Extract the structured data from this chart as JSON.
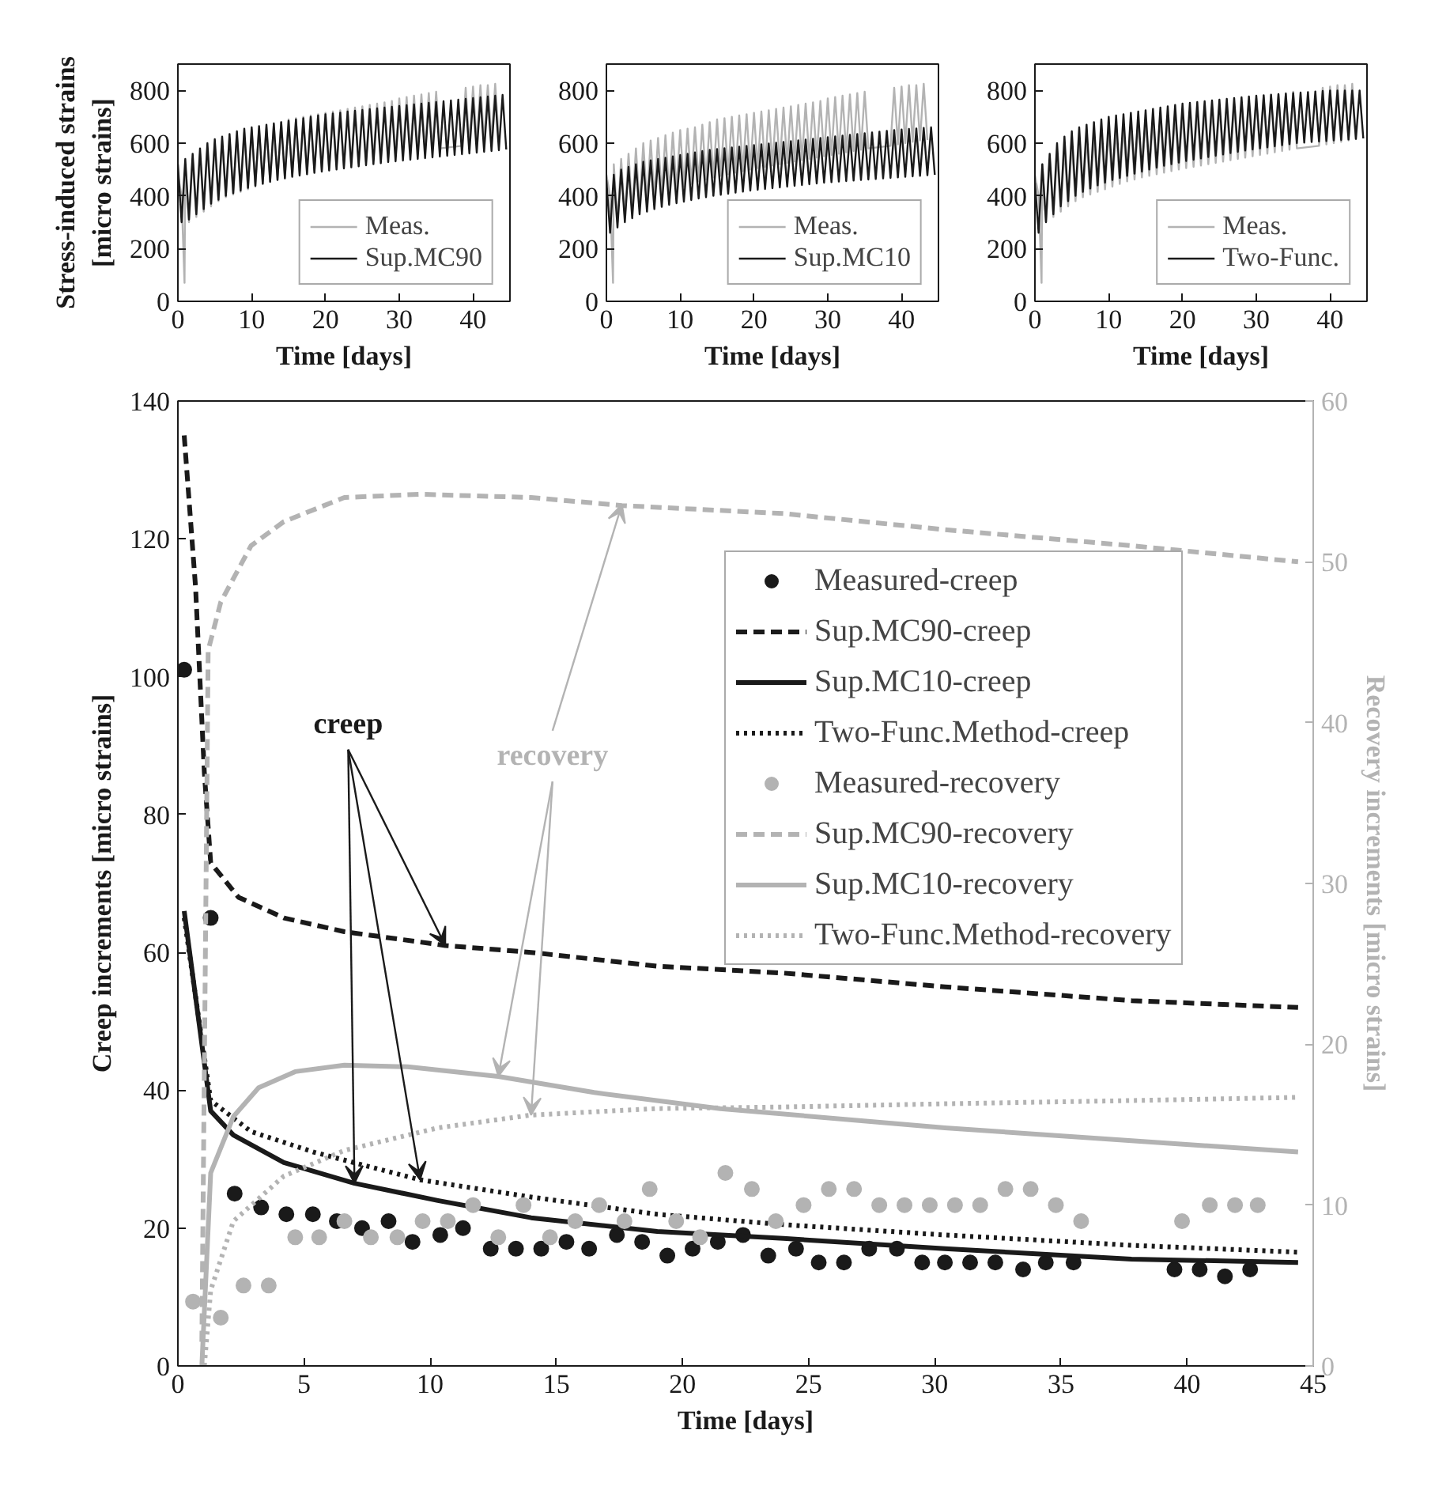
{
  "chart_data": [
    {
      "type": "line",
      "ylabel": "Stress-induced strains\n[micro strains]",
      "xlabel": "Time [days]",
      "xlim": [
        0,
        45
      ],
      "xticks": [
        0,
        10,
        20,
        30,
        40
      ],
      "ylim": [
        0,
        900
      ],
      "yticks": [
        0,
        200,
        400,
        600,
        800
      ],
      "legend": "bottom right",
      "x": [
        0,
        0.5,
        1,
        1.5,
        2,
        2.5,
        3,
        3.5,
        4,
        4.5,
        5,
        5.5,
        6,
        6.5,
        7,
        7.5,
        8,
        8.5,
        9,
        9.5,
        10,
        10.5,
        11,
        11.5,
        12,
        12.5,
        13,
        13.5,
        14,
        14.5,
        15,
        15.5,
        16,
        16.5,
        17,
        17.5,
        18,
        18.5,
        19,
        19.5,
        20,
        20.5,
        21,
        21.5,
        22,
        22.5,
        23,
        23.5,
        24,
        24.5,
        25,
        25.5,
        26,
        26.5,
        27,
        27.5,
        28,
        28.5,
        29,
        29.5,
        30,
        30.5,
        31,
        31.5,
        32,
        32.5,
        33,
        33.5,
        34,
        34.5,
        35,
        35.5,
        36,
        36.5,
        37,
        37.5,
        38,
        38.5,
        39,
        39.5,
        40,
        40.5,
        41,
        41.5,
        42,
        42.5,
        43,
        43.5,
        44,
        44.5
      ],
      "series": [
        {
          "name": "Meas.",
          "color": "#b3b3b3",
          "x": [
            0,
            0.5,
            0.9,
            1,
            1.5,
            2,
            2.5,
            3,
            3.5,
            4,
            4.5,
            5,
            5.5,
            6,
            6.5,
            7,
            7.5,
            8,
            8.5,
            9,
            9.5,
            10,
            10.5,
            11,
            11.5,
            12,
            12.5,
            13,
            13.5,
            14,
            14.5,
            15,
            15.5,
            16,
            16.5,
            17,
            17.5,
            18,
            18.5,
            19,
            19.5,
            20,
            20.5,
            21,
            21.5,
            22,
            22.5,
            23,
            23.5,
            24,
            24.5,
            25,
            25.5,
            26,
            26.5,
            27,
            27.5,
            28,
            28.5,
            29,
            29.5,
            30,
            30.5,
            31,
            31.5,
            32,
            32.5,
            33,
            33.5,
            34,
            34.5,
            35,
            35.5,
            38.5,
            39,
            39.5,
            40,
            40.5,
            41,
            41.5,
            42,
            42.5,
            43,
            43.5
          ],
          "values": [
            480,
            400,
            70,
            520,
            300,
            540,
            320,
            560,
            340,
            580,
            360,
            600,
            380,
            610,
            395,
            620,
            405,
            630,
            415,
            640,
            425,
            650,
            435,
            655,
            445,
            660,
            455,
            670,
            462,
            680,
            470,
            690,
            476,
            695,
            482,
            700,
            488,
            705,
            494,
            710,
            500,
            715,
            505,
            720,
            510,
            725,
            515,
            730,
            520,
            735,
            525,
            740,
            530,
            745,
            535,
            750,
            540,
            755,
            545,
            760,
            550,
            770,
            555,
            775,
            560,
            780,
            565,
            785,
            570,
            790,
            575,
            795,
            580,
            590,
            810,
            595,
            815,
            600,
            820,
            605,
            820,
            610,
            825,
            612
          ]
        },
        {
          "name": "Sup.MC90",
          "color": "#1a1a1a",
          "values": [
            520,
            300,
            540,
            310,
            560,
            330,
            580,
            350,
            600,
            370,
            615,
            385,
            625,
            400,
            635,
            410,
            645,
            420,
            655,
            430,
            660,
            438,
            665,
            446,
            670,
            453,
            675,
            460,
            680,
            466,
            685,
            472,
            690,
            477,
            695,
            482,
            700,
            487,
            705,
            492,
            710,
            496,
            713,
            500,
            716,
            504,
            720,
            508,
            723,
            512,
            726,
            516,
            729,
            520,
            732,
            524,
            735,
            528,
            738,
            531,
            741,
            534,
            744,
            537,
            747,
            540,
            750,
            543,
            753,
            546,
            756,
            549,
            759,
            552,
            762,
            555,
            765,
            558,
            768,
            561,
            771,
            564,
            774,
            567,
            777,
            570,
            780,
            573,
            783,
            576
          ]
        }
      ]
    },
    {
      "type": "line",
      "xlabel": "Time [days]",
      "xlim": [
        0,
        45
      ],
      "xticks": [
        0,
        10,
        20,
        30,
        40
      ],
      "ylim": [
        0,
        900
      ],
      "yticks": [
        0,
        200,
        400,
        600,
        800
      ],
      "legend": "bottom right",
      "x": [
        0,
        0.5,
        1,
        1.5,
        2,
        2.5,
        3,
        3.5,
        4,
        4.5,
        5,
        5.5,
        6,
        6.5,
        7,
        7.5,
        8,
        8.5,
        9,
        9.5,
        10,
        10.5,
        11,
        11.5,
        12,
        12.5,
        13,
        13.5,
        14,
        14.5,
        15,
        15.5,
        16,
        16.5,
        17,
        17.5,
        18,
        18.5,
        19,
        19.5,
        20,
        20.5,
        21,
        21.5,
        22,
        22.5,
        23,
        23.5,
        24,
        24.5,
        25,
        25.5,
        26,
        26.5,
        27,
        27.5,
        28,
        28.5,
        29,
        29.5,
        30,
        30.5,
        31,
        31.5,
        32,
        32.5,
        33,
        33.5,
        34,
        34.5,
        35,
        35.5,
        36,
        36.5,
        37,
        37.5,
        38,
        38.5,
        39,
        39.5,
        40,
        40.5,
        41,
        41.5,
        42,
        42.5,
        43,
        43.5,
        44,
        44.5
      ],
      "series": [
        {
          "name": "Meas.",
          "color": "#b3b3b3",
          "x": [
            0,
            0.5,
            0.9,
            1,
            1.5,
            2,
            2.5,
            3,
            3.5,
            4,
            4.5,
            5,
            5.5,
            6,
            6.5,
            7,
            7.5,
            8,
            8.5,
            9,
            9.5,
            10,
            10.5,
            11,
            11.5,
            12,
            12.5,
            13,
            13.5,
            14,
            14.5,
            15,
            15.5,
            16,
            16.5,
            17,
            17.5,
            18,
            18.5,
            19,
            19.5,
            20,
            20.5,
            21,
            21.5,
            22,
            22.5,
            23,
            23.5,
            24,
            24.5,
            25,
            25.5,
            26,
            26.5,
            27,
            27.5,
            28,
            28.5,
            29,
            29.5,
            30,
            30.5,
            31,
            31.5,
            32,
            32.5,
            33,
            33.5,
            34,
            34.5,
            35,
            35.5,
            38.5,
            39,
            39.5,
            40,
            40.5,
            41,
            41.5,
            42,
            42.5,
            43,
            43.5
          ],
          "values": [
            480,
            400,
            70,
            520,
            300,
            540,
            320,
            560,
            340,
            580,
            360,
            600,
            380,
            610,
            395,
            620,
            405,
            630,
            415,
            640,
            425,
            650,
            435,
            655,
            445,
            660,
            455,
            670,
            462,
            680,
            470,
            690,
            476,
            695,
            482,
            700,
            488,
            705,
            494,
            710,
            500,
            715,
            505,
            720,
            510,
            725,
            515,
            730,
            520,
            735,
            525,
            740,
            530,
            745,
            535,
            750,
            540,
            755,
            545,
            760,
            550,
            770,
            555,
            775,
            560,
            780,
            565,
            785,
            570,
            790,
            575,
            795,
            580,
            590,
            810,
            595,
            815,
            600,
            820,
            605,
            820,
            610,
            825,
            612
          ]
        },
        {
          "name": "Sup.MC10",
          "color": "#1a1a1a",
          "values": [
            460,
            260,
            480,
            280,
            500,
            300,
            510,
            315,
            520,
            330,
            530,
            340,
            535,
            350,
            540,
            358,
            545,
            366,
            550,
            372,
            555,
            378,
            560,
            384,
            565,
            390,
            570,
            395,
            575,
            400,
            578,
            404,
            581,
            408,
            584,
            412,
            587,
            416,
            590,
            420,
            593,
            423,
            596,
            426,
            599,
            429,
            602,
            432,
            605,
            435,
            608,
            438,
            611,
            441,
            614,
            444,
            617,
            447,
            620,
            450,
            623,
            452,
            626,
            454,
            629,
            456,
            632,
            458,
            635,
            460,
            638,
            462,
            641,
            464,
            644,
            466,
            647,
            468,
            650,
            470,
            652,
            472,
            654,
            474,
            656,
            476,
            658,
            478,
            660,
            480
          ]
        }
      ]
    },
    {
      "type": "line",
      "xlabel": "Time [days]",
      "xlim": [
        0,
        45
      ],
      "xticks": [
        0,
        10,
        20,
        30,
        40
      ],
      "ylim": [
        0,
        900
      ],
      "yticks": [
        0,
        200,
        400,
        600,
        800
      ],
      "legend": "bottom right",
      "x": [
        0,
        0.5,
        1,
        1.5,
        2,
        2.5,
        3,
        3.5,
        4,
        4.5,
        5,
        5.5,
        6,
        6.5,
        7,
        7.5,
        8,
        8.5,
        9,
        9.5,
        10,
        10.5,
        11,
        11.5,
        12,
        12.5,
        13,
        13.5,
        14,
        14.5,
        15,
        15.5,
        16,
        16.5,
        17,
        17.5,
        18,
        18.5,
        19,
        19.5,
        20,
        20.5,
        21,
        21.5,
        22,
        22.5,
        23,
        23.5,
        24,
        24.5,
        25,
        25.5,
        26,
        26.5,
        27,
        27.5,
        28,
        28.5,
        29,
        29.5,
        30,
        30.5,
        31,
        31.5,
        32,
        32.5,
        33,
        33.5,
        34,
        34.5,
        35,
        35.5,
        36,
        36.5,
        37,
        37.5,
        38,
        38.5,
        39,
        39.5,
        40,
        40.5,
        41,
        41.5,
        42,
        42.5,
        43,
        43.5,
        44,
        44.5
      ],
      "series": [
        {
          "name": "Meas.",
          "color": "#b3b3b3",
          "x": [
            0,
            0.5,
            0.9,
            1,
            1.5,
            2,
            2.5,
            3,
            3.5,
            4,
            4.5,
            5,
            5.5,
            6,
            6.5,
            7,
            7.5,
            8,
            8.5,
            9,
            9.5,
            10,
            10.5,
            11,
            11.5,
            12,
            12.5,
            13,
            13.5,
            14,
            14.5,
            15,
            15.5,
            16,
            16.5,
            17,
            17.5,
            18,
            18.5,
            19,
            19.5,
            20,
            20.5,
            21,
            21.5,
            22,
            22.5,
            23,
            23.5,
            24,
            24.5,
            25,
            25.5,
            26,
            26.5,
            27,
            27.5,
            28,
            28.5,
            29,
            29.5,
            30,
            30.5,
            31,
            31.5,
            32,
            32.5,
            33,
            33.5,
            34,
            34.5,
            35,
            35.5,
            38.5,
            39,
            39.5,
            40,
            40.5,
            41,
            41.5,
            42,
            42.5,
            43,
            43.5
          ],
          "values": [
            480,
            400,
            70,
            520,
            300,
            540,
            320,
            560,
            340,
            580,
            360,
            600,
            380,
            610,
            395,
            620,
            405,
            630,
            415,
            640,
            425,
            650,
            435,
            655,
            445,
            660,
            455,
            670,
            462,
            680,
            470,
            690,
            476,
            695,
            482,
            700,
            488,
            705,
            494,
            710,
            500,
            715,
            505,
            720,
            510,
            725,
            515,
            730,
            520,
            735,
            525,
            740,
            530,
            745,
            535,
            750,
            540,
            755,
            545,
            760,
            550,
            770,
            555,
            775,
            560,
            780,
            565,
            785,
            570,
            790,
            575,
            795,
            580,
            590,
            810,
            595,
            815,
            600,
            820,
            605,
            820,
            610,
            825,
            612
          ]
        },
        {
          "name": "Two-Func.",
          "color": "#1a1a1a",
          "values": [
            450,
            260,
            520,
            300,
            560,
            330,
            600,
            360,
            625,
            380,
            645,
            400,
            660,
            415,
            670,
            428,
            680,
            440,
            690,
            450,
            700,
            460,
            705,
            468,
            710,
            476,
            715,
            484,
            720,
            492,
            725,
            500,
            730,
            507,
            735,
            514,
            740,
            520,
            745,
            526,
            750,
            532,
            753,
            537,
            756,
            542,
            759,
            547,
            762,
            552,
            765,
            557,
            768,
            562,
            771,
            567,
            774,
            572,
            777,
            576,
            780,
            580,
            782,
            584,
            784,
            588,
            786,
            592,
            788,
            596,
            790,
            600,
            792,
            602,
            794,
            604,
            796,
            606,
            798,
            608,
            800,
            610,
            800,
            612,
            800,
            614,
            800,
            616,
            800,
            618
          ]
        }
      ]
    },
    {
      "type": "line",
      "xlabel": "Time [days]",
      "ylabel": "Creep increments [micro strains]",
      "y2label": "Recovery increments [micro strains]",
      "xlim": [
        0,
        45
      ],
      "xticks": [
        0,
        5,
        10,
        15,
        20,
        25,
        30,
        35,
        40,
        45
      ],
      "ylim": [
        0,
        140
      ],
      "yticks": [
        0,
        20,
        40,
        60,
        80,
        100,
        120,
        140
      ],
      "y2lim": [
        0,
        60
      ],
      "y2ticks": [
        0,
        10,
        20,
        30,
        40,
        50,
        60
      ],
      "legend": "right",
      "annotations": [
        {
          "text": "creep",
          "x": 7,
          "y": 26.5
        },
        {
          "text": "recovery",
          "x": 17.6,
          "y": 125
        }
      ],
      "series": [
        {
          "name": "Measured-creep",
          "type": "scatter",
          "marker": "circle",
          "color": "#1a1a1a",
          "x": [
            0.25,
            1.3,
            2.25,
            3.3,
            4.3,
            5.35,
            6.3,
            7.3,
            8.35,
            9.3,
            10.4,
            11.3,
            12.4,
            13.4,
            14.4,
            15.4,
            16.3,
            17.4,
            18.4,
            19.4,
            20.4,
            21.4,
            22.4,
            23.4,
            24.5,
            25.4,
            26.4,
            27.4,
            28.5,
            29.5,
            30.4,
            31.4,
            32.4,
            33.5,
            34.4,
            35.5,
            39.5,
            40.5,
            41.5,
            42.5
          ],
          "values": [
            101,
            65,
            25,
            23,
            22,
            22,
            21,
            20,
            21,
            18,
            19,
            20,
            17,
            17,
            17,
            18,
            17,
            19,
            18,
            16,
            17,
            18,
            19,
            16,
            17,
            15,
            15,
            17,
            17,
            15,
            15,
            15,
            15,
            14,
            15,
            15,
            14,
            14,
            13,
            14
          ]
        },
        {
          "name": "Sup.MC90-creep",
          "type": "line",
          "line_style": "dashed",
          "color": "#1a1a1a",
          "x": [
            0.25,
            0.7,
            1.05,
            1.3,
            2.4,
            4.2,
            6.6,
            10.6,
            14,
            19,
            24,
            30.4,
            37.8,
            44.4
          ],
          "values": [
            135,
            113,
            86,
            73,
            68,
            65,
            63,
            61,
            60,
            58,
            57,
            55,
            53,
            52
          ]
        },
        {
          "name": "Sup.MC10-creep",
          "type": "line",
          "line_style": "solid",
          "color": "#1a1a1a",
          "x": [
            0.25,
            1.3,
            2.2,
            4.2,
            7,
            10.3,
            14,
            19,
            24,
            30.4,
            37.8,
            44.4
          ],
          "values": [
            66,
            37,
            33.5,
            29.5,
            26.5,
            24,
            21.5,
            19.5,
            18.5,
            17,
            15.5,
            15
          ]
        },
        {
          "name": "Two-Func.Method-creep",
          "type": "line",
          "line_style": "dotted",
          "color": "#1a1a1a",
          "x": [
            0.25,
            1.3,
            2.9,
            5.4,
            9.6,
            14,
            19,
            24,
            30.4,
            37.8,
            44.4
          ],
          "values": [
            65,
            38.5,
            34,
            31,
            27,
            24.5,
            22,
            20.5,
            19,
            17.5,
            16.5
          ]
        },
        {
          "name": "Measured-recovery",
          "type": "scatter",
          "marker": "circle",
          "axis": "y2",
          "color": "#b3b3b3",
          "x": [
            0.6,
            1.7,
            2.6,
            3.6,
            4.65,
            5.6,
            6.6,
            7.65,
            8.7,
            9.7,
            10.7,
            11.7,
            12.7,
            13.7,
            14.75,
            15.75,
            16.7,
            17.7,
            18.7,
            19.75,
            20.7,
            21.7,
            22.75,
            23.7,
            24.8,
            25.8,
            26.8,
            27.8,
            28.8,
            29.8,
            30.8,
            31.8,
            32.8,
            33.8,
            34.8,
            35.8,
            39.8,
            40.9,
            41.9,
            42.8
          ],
          "values": [
            4,
            3,
            5,
            5,
            8,
            8,
            9,
            8,
            8,
            9,
            9,
            10,
            8,
            10,
            8,
            9,
            10,
            9,
            11,
            9,
            8,
            12,
            11,
            9,
            10,
            11,
            11,
            10,
            10,
            10,
            10,
            10,
            11,
            11,
            10,
            9,
            9,
            10,
            10,
            10
          ]
        },
        {
          "name": "Sup.MC90-recovery",
          "type": "line",
          "line_style": "dashed",
          "axis": "y2",
          "color": "#b3b3b3",
          "x": [
            0.95,
            1.2,
            1.7,
            2.9,
            4.2,
            6.6,
            9.6,
            14,
            17.6,
            24,
            30.4,
            37.8,
            44.4
          ],
          "values": [
            1.5,
            44.5,
            47.5,
            51,
            52.5,
            54,
            54.2,
            54,
            53.5,
            53,
            52,
            51,
            50
          ]
        },
        {
          "name": "Sup.MC10-recovery",
          "type": "line",
          "line_style": "solid",
          "axis": "y2",
          "color": "#b3b3b3",
          "x": [
            0.95,
            1.3,
            2.2,
            3.2,
            4.65,
            6.6,
            9.1,
            12.7,
            16.5,
            21.5,
            30.4,
            37.8,
            44.4
          ],
          "values": [
            0,
            12,
            15.5,
            17.3,
            18.3,
            18.7,
            18.6,
            18,
            17,
            16,
            14.8,
            14,
            13.3
          ]
        },
        {
          "name": "Two-Func.Method-recovery",
          "type": "line",
          "line_style": "dotted",
          "axis": "y2",
          "color": "#b3b3b3",
          "x": [
            1.05,
            1.3,
            2.2,
            4.2,
            6.6,
            10.3,
            14,
            19,
            24,
            30.4,
            37.8,
            44.4
          ],
          "values": [
            0,
            4.7,
            9,
            11.8,
            13.4,
            14.8,
            15.6,
            16,
            16.1,
            16.3,
            16.5,
            16.7
          ]
        }
      ]
    }
  ]
}
